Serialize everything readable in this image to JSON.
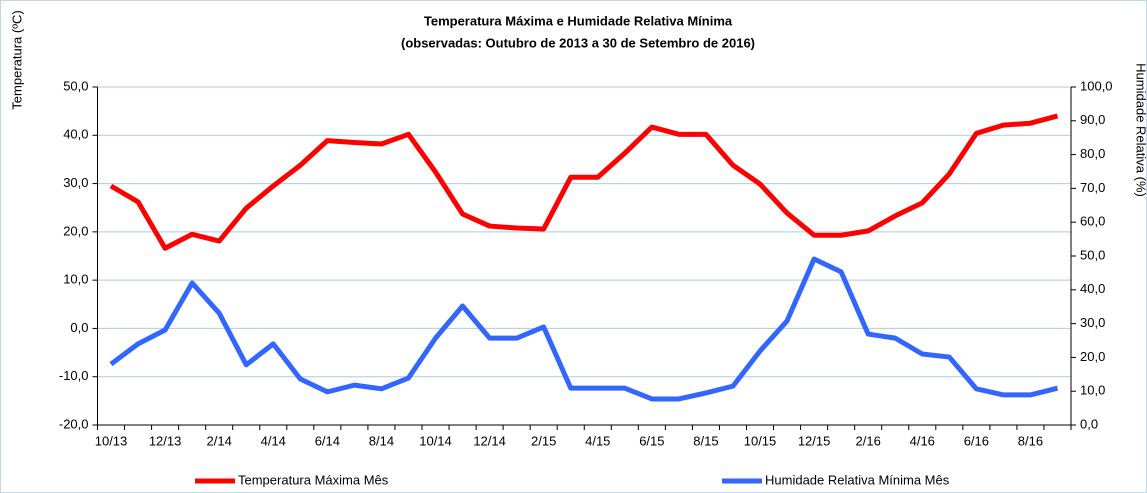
{
  "chart_data": {
    "type": "line",
    "title": "Temperatura Máxima e Humidade Relativa Mínima",
    "subtitle": "(observadas: Outubro de 2013 a 30 de Setembro de 2016)",
    "y_label": "Temperatura (ºC)",
    "y2_label": "Humidade Relativa (%)",
    "categories": [
      "10/13",
      null,
      "12/13",
      null,
      "2/14",
      null,
      "4/14",
      null,
      "6/14",
      null,
      "8/14",
      null,
      "10/14",
      null,
      "12/14",
      null,
      "2/15",
      null,
      "4/15",
      null,
      "6/15",
      null,
      "8/15",
      null,
      "10/15",
      null,
      "12/15",
      null,
      "2/16",
      null,
      "4/16",
      null,
      "6/16",
      null,
      "8/16",
      null
    ],
    "series": [
      {
        "name": "Temperatura Máxima Mês",
        "color": "#ff0000",
        "values": [
          29.5,
          26.2,
          16.6,
          19.5,
          18.1,
          24.9,
          29.5,
          33.8,
          38.9,
          38.5,
          38.2,
          40.2,
          32.4,
          23.7,
          21.2,
          20.8,
          20.6,
          31.3,
          31.3,
          36.3,
          41.7,
          40.2,
          40.2,
          33.8,
          29.9,
          23.9,
          19.3,
          19.3,
          20.2,
          23.3,
          26.0,
          32.0,
          40.4,
          42.1,
          42.5,
          44.0
        ]
      },
      {
        "name": "Humidade Relativa Mínima Mês",
        "color": "#3366ff",
        "axis": "y2",
        "values": [
          18.0,
          24.0,
          28.1,
          42.0,
          33.1,
          17.8,
          24.0,
          13.6,
          9.8,
          11.8,
          10.7,
          13.9,
          25.7,
          35.2,
          25.7,
          25.7,
          29.0,
          10.9,
          10.9,
          10.9,
          7.7,
          7.7,
          9.5,
          11.5,
          21.9,
          30.8,
          49.1,
          45.3,
          26.9,
          25.7,
          21.0,
          20.1,
          10.7,
          8.9,
          8.9,
          10.9
        ]
      }
    ],
    "ylim": [
      -20,
      50
    ],
    "yticks": [
      {
        "value": -20,
        "label": "-20,0"
      },
      {
        "value": -10,
        "label": "-10,0"
      },
      {
        "value": 0,
        "label": "0,0"
      },
      {
        "value": 10,
        "label": "10,0"
      },
      {
        "value": 20,
        "label": "20,0"
      },
      {
        "value": 30,
        "label": "30,0"
      },
      {
        "value": 40,
        "label": "40,0"
      },
      {
        "value": 50,
        "label": "50,0"
      }
    ],
    "y2lim": [
      0,
      100
    ],
    "y2ticks": [
      {
        "value": 0,
        "label": "0,0"
      },
      {
        "value": 10,
        "label": "10,0"
      },
      {
        "value": 20,
        "label": "20,0"
      },
      {
        "value": 30,
        "label": "30,0"
      },
      {
        "value": 40,
        "label": "40,0"
      },
      {
        "value": 50,
        "label": "50,0"
      },
      {
        "value": 60,
        "label": "60,0"
      },
      {
        "value": 70,
        "label": "70,0"
      },
      {
        "value": 80,
        "label": "80,0"
      },
      {
        "value": 90,
        "label": "90,0"
      },
      {
        "value": 100,
        "label": "100,0"
      }
    ],
    "grid": true,
    "legend": "bottom"
  }
}
